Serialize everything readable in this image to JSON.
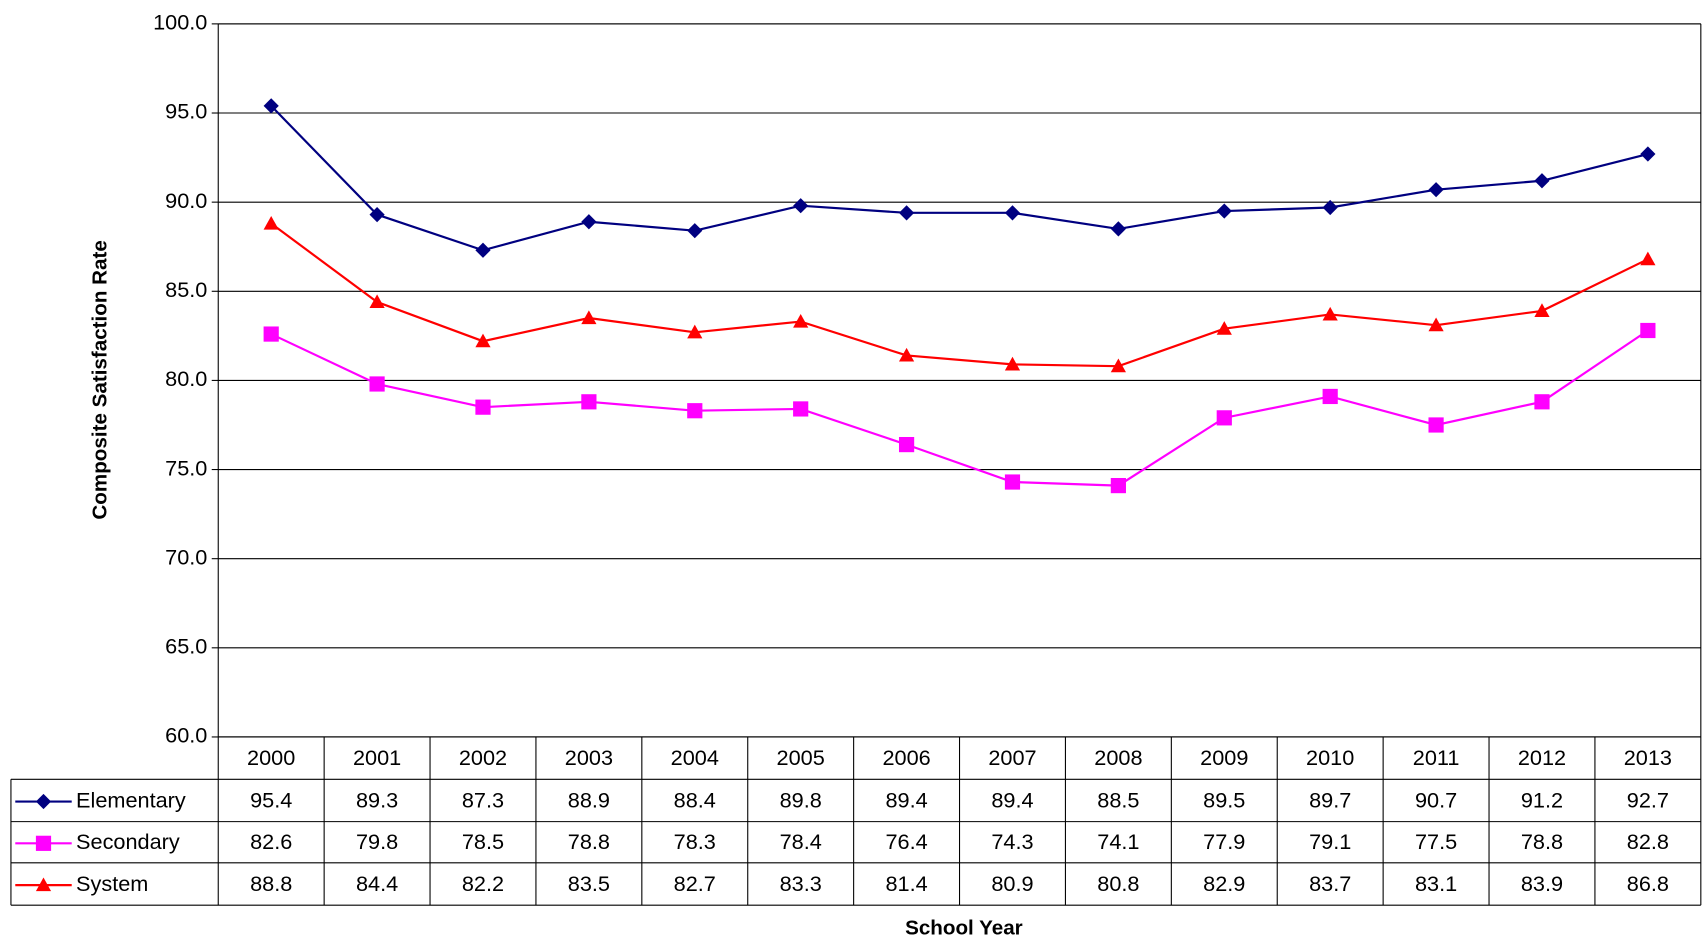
{
  "chart_data": {
    "type": "line",
    "x_label": "School Year",
    "y_label": "Composite Satisfaction Rate",
    "categories": [
      "2000",
      "2001",
      "2002",
      "2003",
      "2004",
      "2005",
      "2006",
      "2007",
      "2008",
      "2009",
      "2010",
      "2011",
      "2012",
      "2013"
    ],
    "series": [
      {
        "name": "Elementary",
        "color": "#000080",
        "marker": "diamond",
        "values": [
          95.4,
          89.3,
          87.3,
          88.9,
          88.4,
          89.8,
          89.4,
          89.4,
          88.5,
          89.5,
          89.7,
          90.7,
          91.2,
          92.7
        ]
      },
      {
        "name": "Secondary",
        "color": "#ff00ff",
        "marker": "square",
        "values": [
          82.6,
          79.8,
          78.5,
          78.8,
          78.3,
          78.4,
          76.4,
          74.3,
          74.1,
          77.9,
          79.1,
          77.5,
          78.8,
          82.8
        ]
      },
      {
        "name": "System",
        "color": "#ff0000",
        "marker": "triangle",
        "values": [
          88.8,
          84.4,
          82.2,
          83.5,
          82.7,
          83.3,
          81.4,
          80.9,
          80.8,
          82.9,
          83.7,
          83.1,
          83.9,
          86.8
        ]
      }
    ],
    "ylim": [
      60,
      100
    ],
    "yticks": [
      {
        "value": 60,
        "label": "60.0"
      },
      {
        "value": 65,
        "label": "65.0"
      },
      {
        "value": 70,
        "label": "70.0"
      },
      {
        "value": 75,
        "label": "75.0"
      },
      {
        "value": 80,
        "label": "80.0"
      },
      {
        "value": 85,
        "label": "85.0"
      },
      {
        "value": 90,
        "label": "90.0"
      },
      {
        "value": 95,
        "label": "95.0"
      },
      {
        "value": 100,
        "label": "100.0"
      }
    ],
    "grid": true,
    "data_table": true
  }
}
